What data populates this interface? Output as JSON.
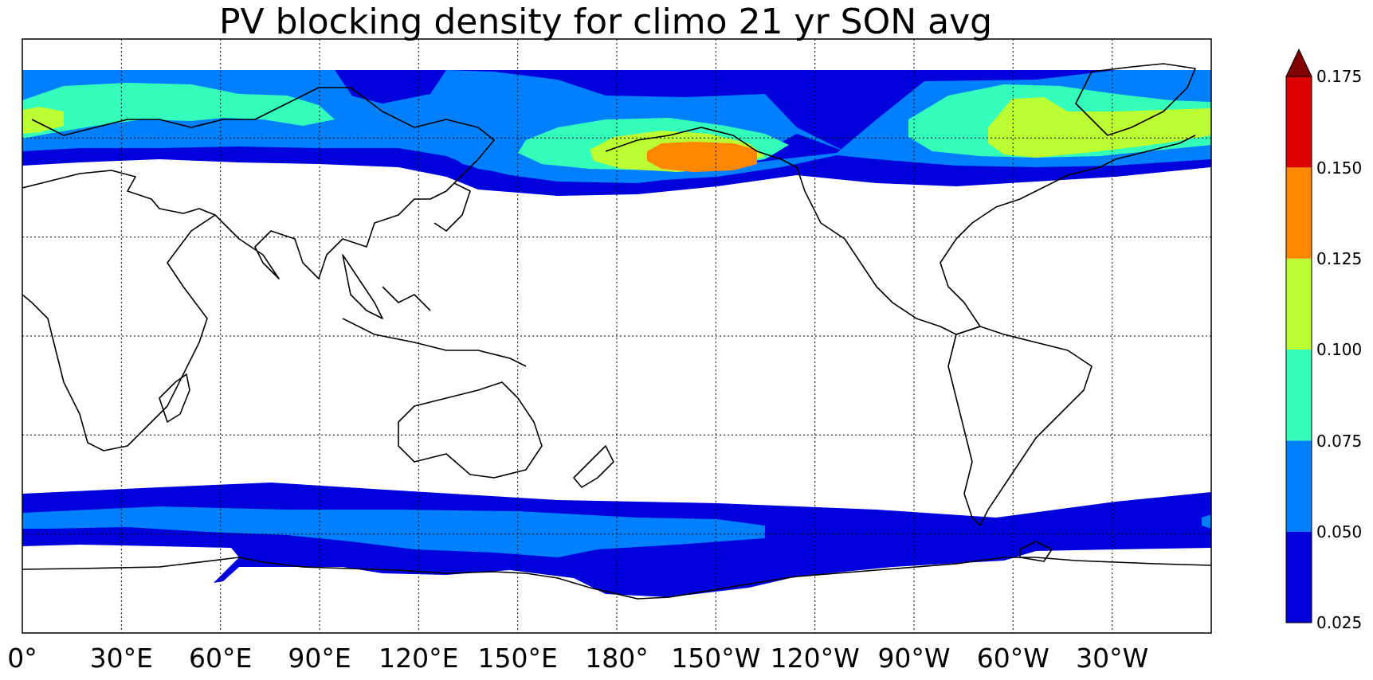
{
  "title": "PV blocking density for climo 21 yr SON avg",
  "chart_data": {
    "type": "heatmap",
    "title": "PV blocking density for climo 21 yr SON avg",
    "xlabel": "",
    "ylabel": "",
    "x_tick_labels": [
      "0°",
      "30°E",
      "60°E",
      "90°E",
      "120°E",
      "150°E",
      "180°",
      "150°W",
      "120°W",
      "90°W",
      "60°W",
      "30°W"
    ],
    "lon_range": [
      0,
      360
    ],
    "grid": true,
    "colorbar": {
      "levels": [
        0.025,
        0.05,
        0.075,
        0.1,
        0.125,
        0.15,
        0.175
      ],
      "tick_labels": [
        "0.025",
        "0.050",
        "0.075",
        "0.100",
        "0.125",
        "0.150",
        "0.175"
      ],
      "colors": [
        "#0000dd",
        "#0080ff",
        "#33ffbb",
        "#bbff33",
        "#ff8800",
        "#dd0000"
      ],
      "extend_max_color": "#800000",
      "placement": "right"
    }
  }
}
